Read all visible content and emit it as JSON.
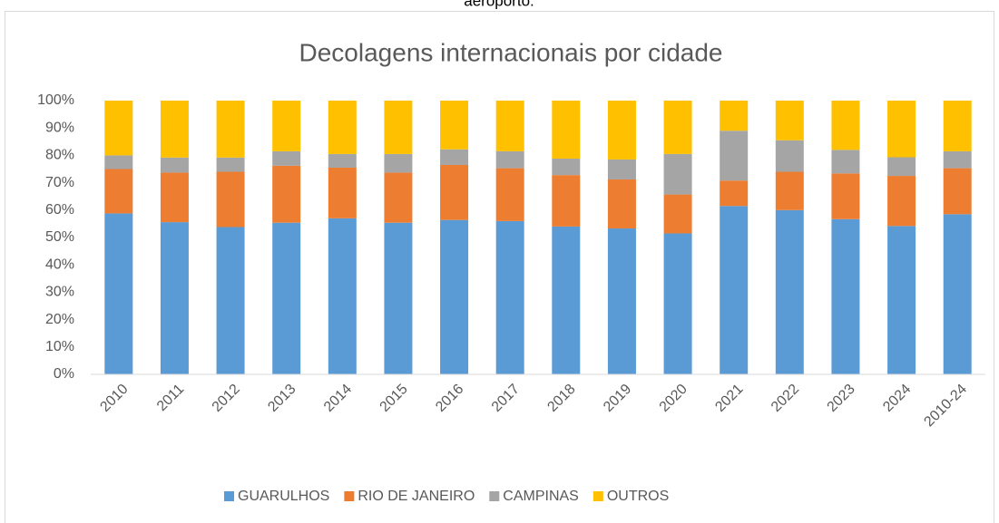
{
  "chart_data": {
    "type": "stacked_bar_100",
    "annotation": "aeroporto.",
    "title": "Decolagens internacionais por cidade",
    "categories": [
      "2010",
      "2011",
      "2012",
      "2013",
      "2014",
      "2015",
      "2016",
      "2017",
      "2018",
      "2019",
      "2020",
      "2021",
      "2022",
      "2023",
      "2024",
      "2010-24"
    ],
    "series": [
      {
        "name": "GUARULHOS",
        "color": "#5b9bd5",
        "values": [
          58.8,
          55.6,
          53.8,
          55.4,
          57,
          55.4,
          56.4,
          56,
          54,
          53.3,
          51.5,
          61.5,
          60,
          56.7,
          54.2,
          58.5
        ]
      },
      {
        "name": "RIO DE JANEIRO",
        "color": "#ed7d31",
        "values": [
          16.2,
          18.1,
          20.2,
          20.8,
          18.5,
          18.3,
          20.1,
          19.3,
          18.8,
          17.9,
          14.2,
          9.3,
          14,
          16.7,
          18.3,
          16.8
        ]
      },
      {
        "name": "CAMPINAS",
        "color": "#a5a5a5",
        "values": [
          5,
          5.5,
          5.2,
          5.3,
          5,
          6.8,
          5.7,
          6.2,
          6,
          7.3,
          14.8,
          18.2,
          11.5,
          8.6,
          6.8,
          6.2
        ]
      },
      {
        "name": "OUTROS",
        "color": "#ffc000",
        "values": [
          20,
          20.8,
          20.8,
          18.5,
          19.5,
          19.5,
          17.8,
          18.5,
          21.2,
          21.5,
          19.5,
          11,
          14.5,
          18,
          20.7,
          18.5
        ]
      }
    ],
    "ylim": [
      0,
      100
    ],
    "yticks": [
      {
        "value": 0,
        "label": "0%"
      },
      {
        "value": 10,
        "label": "10%"
      },
      {
        "value": 20,
        "label": "20%"
      },
      {
        "value": 30,
        "label": "30%"
      },
      {
        "value": 40,
        "label": "40%"
      },
      {
        "value": 50,
        "label": "50%"
      },
      {
        "value": 60,
        "label": "60%"
      },
      {
        "value": 70,
        "label": "70%"
      },
      {
        "value": 80,
        "label": "80%"
      },
      {
        "value": 90,
        "label": "90%"
      },
      {
        "value": 100,
        "label": "100%"
      }
    ],
    "grid": false,
    "legend": "bottom"
  }
}
